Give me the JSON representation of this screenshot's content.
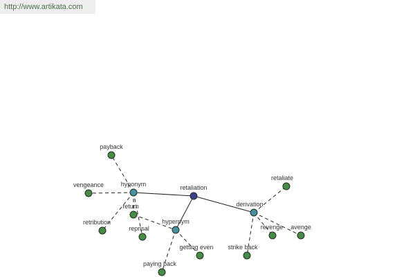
{
  "header": {
    "url": "http://www.artikata.com"
  },
  "nodes": [
    {
      "label": "retaliation"
    },
    {
      "label": "hyponym"
    },
    {
      "label": "hypernym"
    },
    {
      "label": "derivation"
    },
    {
      "label": "payback"
    },
    {
      "label": "vengeance"
    },
    {
      "label": "return"
    },
    {
      "label": "retribution"
    },
    {
      "label": "reprisal"
    },
    {
      "label": "getting even"
    },
    {
      "label": "paying back"
    },
    {
      "label": "retaliate"
    },
    {
      "label": "revenge"
    },
    {
      "label": "avenge"
    },
    {
      "label": "strike back"
    }
  ]
}
